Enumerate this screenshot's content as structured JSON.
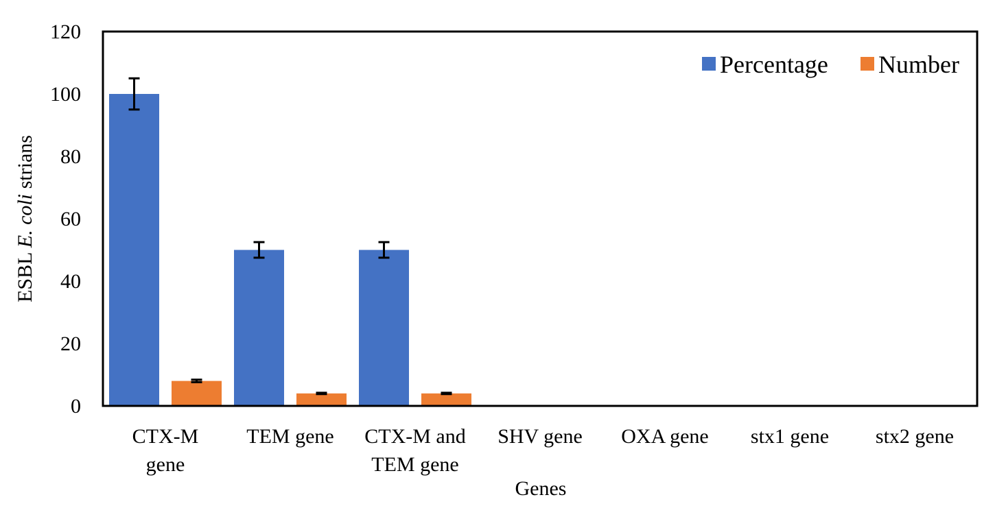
{
  "chart_data": {
    "type": "bar",
    "title": "",
    "xlabel": "Genes",
    "ylabel_parts": [
      "ESBL ",
      "E. coli",
      " strians"
    ],
    "ylim": [
      0,
      120
    ],
    "yticks": [
      "0",
      "20",
      "40",
      "60",
      "80",
      "100",
      "120"
    ],
    "categories": [
      [
        "CTX-M",
        "gene"
      ],
      [
        "TEM gene"
      ],
      [
        "CTX-M and",
        "TEM gene"
      ],
      [
        "SHV gene"
      ],
      [
        "OXA gene"
      ],
      [
        "stx1 gene"
      ],
      [
        "stx2 gene"
      ]
    ],
    "series": [
      {
        "name": "Percentage",
        "color": "#4472C4",
        "values": [
          100,
          50,
          50,
          0,
          0,
          0,
          0
        ],
        "errors": [
          5,
          2.5,
          2.5,
          0,
          0,
          0,
          0
        ]
      },
      {
        "name": "Number",
        "color": "#ED7D31",
        "values": [
          8,
          4,
          4,
          0,
          0,
          0,
          0
        ],
        "errors": [
          0.4,
          0.2,
          0.2,
          0,
          0,
          0,
          0
        ]
      }
    ],
    "legend": "top-right",
    "grid": false
  }
}
